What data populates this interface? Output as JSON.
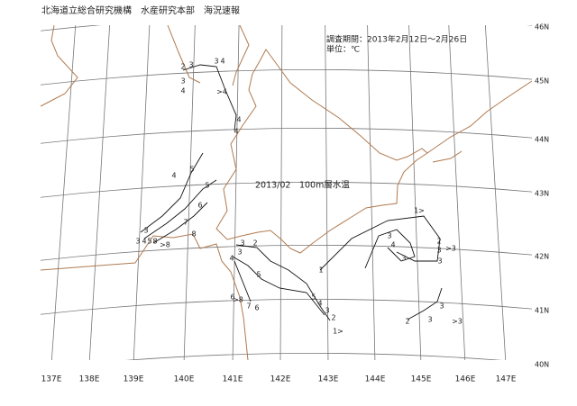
{
  "header": {
    "title": "北海道立総合研究機構　水産研究本部　海況速報"
  },
  "map": {
    "period": "調査期間：2013年2月12日～2月26日",
    "unit": "単位：℃",
    "label": "2013/02　100m層水温",
    "longitude_labels": [
      "137E",
      "138E",
      "139E",
      "140E",
      "141E",
      "142E",
      "143E",
      "144E",
      "145E",
      "146E",
      "147E"
    ],
    "latitude_labels": [
      "46N",
      "45N",
      "44N",
      "43N",
      "42N",
      "41N",
      "40N"
    ],
    "contour_labels": [
      "2",
      "3",
      "3",
      "4",
      "3",
      "4",
      ">4",
      "4",
      "4",
      "5",
      "4",
      "5",
      "6",
      "7",
      "8",
      "3",
      "3",
      "4",
      "5",
      "8",
      ">8",
      "3",
      "2",
      "3",
      "4",
      "5",
      "6",
      ">8",
      "7",
      "6",
      "1",
      "2",
      "3",
      "4",
      "5",
      "1>",
      "1>",
      "3",
      "4",
      "3",
      "2",
      "3",
      ">3",
      "3",
      "3",
      "2",
      "3",
      ">3"
    ]
  }
}
